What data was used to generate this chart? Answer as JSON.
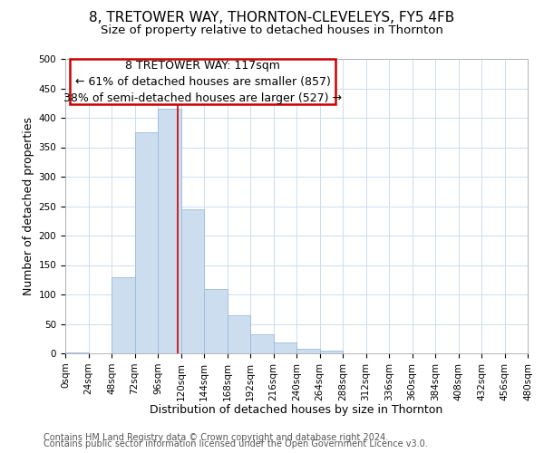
{
  "title": "8, TRETOWER WAY, THORNTON-CLEVELEYS, FY5 4FB",
  "subtitle": "Size of property relative to detached houses in Thornton",
  "xlabel": "Distribution of detached houses by size in Thornton",
  "ylabel": "Number of detached properties",
  "bar_edges": [
    0,
    24,
    48,
    72,
    96,
    120,
    144,
    168,
    192,
    216,
    240,
    264,
    288,
    312,
    336,
    360,
    384,
    408,
    432,
    456,
    480
  ],
  "bar_heights": [
    2,
    0,
    130,
    375,
    415,
    245,
    110,
    65,
    33,
    18,
    7,
    5,
    0,
    0,
    0,
    0,
    0,
    0,
    0,
    0
  ],
  "bar_color": "#ccddf0",
  "bar_edgecolor": "#99bbdd",
  "vline_x": 117,
  "vline_color": "#cc0000",
  "annotation_line1": "8 TRETOWER WAY: 117sqm",
  "annotation_line2": "← 61% of detached houses are smaller (857)",
  "annotation_line3": "38% of semi-detached houses are larger (527) →",
  "ylim": [
    0,
    500
  ],
  "yticks": [
    0,
    50,
    100,
    150,
    200,
    250,
    300,
    350,
    400,
    450,
    500
  ],
  "xtick_labels": [
    "0sqm",
    "24sqm",
    "48sqm",
    "72sqm",
    "96sqm",
    "120sqm",
    "144sqm",
    "168sqm",
    "192sqm",
    "216sqm",
    "240sqm",
    "264sqm",
    "288sqm",
    "312sqm",
    "336sqm",
    "360sqm",
    "384sqm",
    "408sqm",
    "432sqm",
    "456sqm",
    "480sqm"
  ],
  "footer_line1": "Contains HM Land Registry data © Crown copyright and database right 2024.",
  "footer_line2": "Contains public sector information licensed under the Open Government Licence v3.0.",
  "title_fontsize": 11,
  "subtitle_fontsize": 9.5,
  "xlabel_fontsize": 9,
  "ylabel_fontsize": 9,
  "annotation_fontsize": 9,
  "footer_fontsize": 7,
  "tick_fontsize": 7.5,
  "background_color": "#ffffff",
  "grid_color": "#ccddee"
}
